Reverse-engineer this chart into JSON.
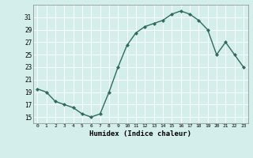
{
  "x": [
    0,
    1,
    2,
    3,
    4,
    5,
    6,
    7,
    8,
    9,
    10,
    11,
    12,
    13,
    14,
    15,
    16,
    17,
    18,
    19,
    20,
    21,
    22,
    23
  ],
  "y": [
    19.5,
    19.0,
    17.5,
    17.0,
    16.5,
    15.5,
    15.0,
    15.5,
    19.0,
    23.0,
    26.5,
    28.5,
    29.5,
    30.0,
    30.5,
    31.5,
    32.0,
    31.5,
    30.5,
    29.0,
    25.0,
    27.0,
    25.0,
    23.0
  ],
  "line_color": "#2e6b5e",
  "marker": "D",
  "marker_size": 2.0,
  "bg_color": "#d4eeec",
  "grid_color": "#ffffff",
  "xlabel": "Humidex (Indice chaleur)",
  "xlim": [
    -0.5,
    23.5
  ],
  "ylim": [
    14,
    33
  ],
  "yticks": [
    15,
    17,
    19,
    21,
    23,
    25,
    27,
    29,
    31
  ],
  "xticks": [
    0,
    1,
    2,
    3,
    4,
    5,
    6,
    7,
    8,
    9,
    10,
    11,
    12,
    13,
    14,
    15,
    16,
    17,
    18,
    19,
    20,
    21,
    22,
    23
  ],
  "xtick_labels": [
    "0",
    "1",
    "2",
    "3",
    "4",
    "5",
    "6",
    "7",
    "8",
    "9",
    "10",
    "11",
    "12",
    "13",
    "14",
    "15",
    "16",
    "17",
    "18",
    "19",
    "20",
    "21",
    "22",
    "23"
  ],
  "line_width": 1.0
}
